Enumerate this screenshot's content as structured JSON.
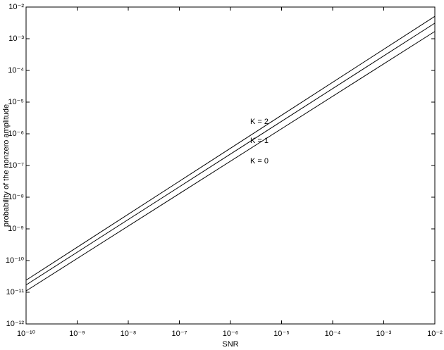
{
  "chart_data": {
    "type": "line",
    "xlabel": "SNR",
    "ylabel": "probability of the nonzero amplitude",
    "log_x": true,
    "log_y": true,
    "grid": false,
    "x": [
      1e-10,
      0.01
    ],
    "series": [
      {
        "name": "K = 0",
        "color": "#000000",
        "values": [
          1.1e-11,
          0.0017
        ]
      },
      {
        "name": "K = 1",
        "color": "#000000",
        "values": [
          1.7e-11,
          0.0031
        ]
      },
      {
        "name": "K = 2",
        "color": "#000000",
        "values": [
          2.4e-11,
          0.0051
        ]
      }
    ],
    "xlim": [
      1e-10,
      0.01
    ],
    "ylim": [
      1e-12,
      0.01
    ],
    "xticks": [
      {
        "value": 1e-10,
        "label": "10⁻¹⁰"
      },
      {
        "value": 1e-09,
        "label": "10⁻⁹"
      },
      {
        "value": 1e-08,
        "label": "10⁻⁸"
      },
      {
        "value": 1e-07,
        "label": "10⁻⁷"
      },
      {
        "value": 1e-06,
        "label": "10⁻⁶"
      },
      {
        "value": 1e-05,
        "label": "10⁻⁵"
      },
      {
        "value": 0.0001,
        "label": "10⁻⁴"
      },
      {
        "value": 0.001,
        "label": "10⁻³"
      },
      {
        "value": 0.01,
        "label": "10⁻²"
      }
    ],
    "yticks": [
      {
        "value": 1e-12,
        "label": "10⁻¹²"
      },
      {
        "value": 1e-11,
        "label": "10⁻¹¹"
      },
      {
        "value": 1e-10,
        "label": "10⁻¹⁰"
      },
      {
        "value": 1e-09,
        "label": "10⁻⁹"
      },
      {
        "value": 1e-08,
        "label": "10⁻⁸"
      },
      {
        "value": 1e-07,
        "label": "10⁻⁷"
      },
      {
        "value": 1e-06,
        "label": "10⁻⁶"
      },
      {
        "value": 1e-05,
        "label": "10⁻⁵"
      },
      {
        "value": 0.0001,
        "label": "10⁻⁴"
      },
      {
        "value": 0.001,
        "label": "10⁻³"
      },
      {
        "value": 0.01,
        "label": "10⁻²"
      }
    ]
  }
}
